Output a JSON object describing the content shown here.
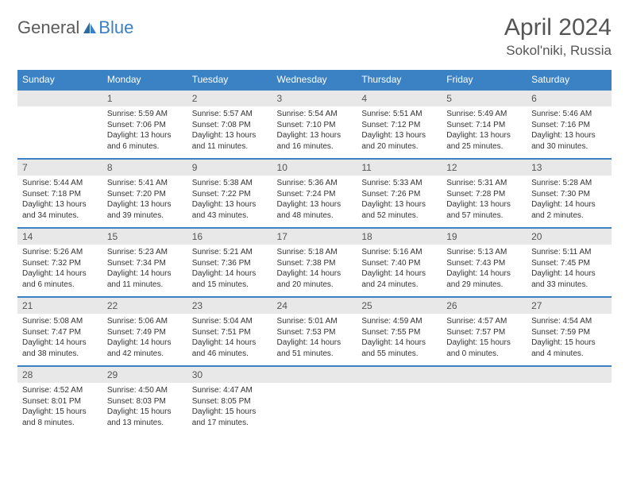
{
  "logo": {
    "general": "General",
    "blue": "Blue",
    "accent_color": "#3b7fc4"
  },
  "title": "April 2024",
  "location": "Sokol'niki, Russia",
  "header_bg": "#3b82c4",
  "header_text": "#ffffff",
  "daynum_bg": "#e8e8e8",
  "row_border": "#3b82c4",
  "days_of_week": [
    "Sunday",
    "Monday",
    "Tuesday",
    "Wednesday",
    "Thursday",
    "Friday",
    "Saturday"
  ],
  "first_weekday": 1,
  "days": [
    {
      "n": 1,
      "sunrise": "5:59 AM",
      "sunset": "7:06 PM",
      "daylight": "13 hours and 6 minutes."
    },
    {
      "n": 2,
      "sunrise": "5:57 AM",
      "sunset": "7:08 PM",
      "daylight": "13 hours and 11 minutes."
    },
    {
      "n": 3,
      "sunrise": "5:54 AM",
      "sunset": "7:10 PM",
      "daylight": "13 hours and 16 minutes."
    },
    {
      "n": 4,
      "sunrise": "5:51 AM",
      "sunset": "7:12 PM",
      "daylight": "13 hours and 20 minutes."
    },
    {
      "n": 5,
      "sunrise": "5:49 AM",
      "sunset": "7:14 PM",
      "daylight": "13 hours and 25 minutes."
    },
    {
      "n": 6,
      "sunrise": "5:46 AM",
      "sunset": "7:16 PM",
      "daylight": "13 hours and 30 minutes."
    },
    {
      "n": 7,
      "sunrise": "5:44 AM",
      "sunset": "7:18 PM",
      "daylight": "13 hours and 34 minutes."
    },
    {
      "n": 8,
      "sunrise": "5:41 AM",
      "sunset": "7:20 PM",
      "daylight": "13 hours and 39 minutes."
    },
    {
      "n": 9,
      "sunrise": "5:38 AM",
      "sunset": "7:22 PM",
      "daylight": "13 hours and 43 minutes."
    },
    {
      "n": 10,
      "sunrise": "5:36 AM",
      "sunset": "7:24 PM",
      "daylight": "13 hours and 48 minutes."
    },
    {
      "n": 11,
      "sunrise": "5:33 AM",
      "sunset": "7:26 PM",
      "daylight": "13 hours and 52 minutes."
    },
    {
      "n": 12,
      "sunrise": "5:31 AM",
      "sunset": "7:28 PM",
      "daylight": "13 hours and 57 minutes."
    },
    {
      "n": 13,
      "sunrise": "5:28 AM",
      "sunset": "7:30 PM",
      "daylight": "14 hours and 2 minutes."
    },
    {
      "n": 14,
      "sunrise": "5:26 AM",
      "sunset": "7:32 PM",
      "daylight": "14 hours and 6 minutes."
    },
    {
      "n": 15,
      "sunrise": "5:23 AM",
      "sunset": "7:34 PM",
      "daylight": "14 hours and 11 minutes."
    },
    {
      "n": 16,
      "sunrise": "5:21 AM",
      "sunset": "7:36 PM",
      "daylight": "14 hours and 15 minutes."
    },
    {
      "n": 17,
      "sunrise": "5:18 AM",
      "sunset": "7:38 PM",
      "daylight": "14 hours and 20 minutes."
    },
    {
      "n": 18,
      "sunrise": "5:16 AM",
      "sunset": "7:40 PM",
      "daylight": "14 hours and 24 minutes."
    },
    {
      "n": 19,
      "sunrise": "5:13 AM",
      "sunset": "7:43 PM",
      "daylight": "14 hours and 29 minutes."
    },
    {
      "n": 20,
      "sunrise": "5:11 AM",
      "sunset": "7:45 PM",
      "daylight": "14 hours and 33 minutes."
    },
    {
      "n": 21,
      "sunrise": "5:08 AM",
      "sunset": "7:47 PM",
      "daylight": "14 hours and 38 minutes."
    },
    {
      "n": 22,
      "sunrise": "5:06 AM",
      "sunset": "7:49 PM",
      "daylight": "14 hours and 42 minutes."
    },
    {
      "n": 23,
      "sunrise": "5:04 AM",
      "sunset": "7:51 PM",
      "daylight": "14 hours and 46 minutes."
    },
    {
      "n": 24,
      "sunrise": "5:01 AM",
      "sunset": "7:53 PM",
      "daylight": "14 hours and 51 minutes."
    },
    {
      "n": 25,
      "sunrise": "4:59 AM",
      "sunset": "7:55 PM",
      "daylight": "14 hours and 55 minutes."
    },
    {
      "n": 26,
      "sunrise": "4:57 AM",
      "sunset": "7:57 PM",
      "daylight": "15 hours and 0 minutes."
    },
    {
      "n": 27,
      "sunrise": "4:54 AM",
      "sunset": "7:59 PM",
      "daylight": "15 hours and 4 minutes."
    },
    {
      "n": 28,
      "sunrise": "4:52 AM",
      "sunset": "8:01 PM",
      "daylight": "15 hours and 8 minutes."
    },
    {
      "n": 29,
      "sunrise": "4:50 AM",
      "sunset": "8:03 PM",
      "daylight": "15 hours and 13 minutes."
    },
    {
      "n": 30,
      "sunrise": "4:47 AM",
      "sunset": "8:05 PM",
      "daylight": "15 hours and 17 minutes."
    }
  ]
}
